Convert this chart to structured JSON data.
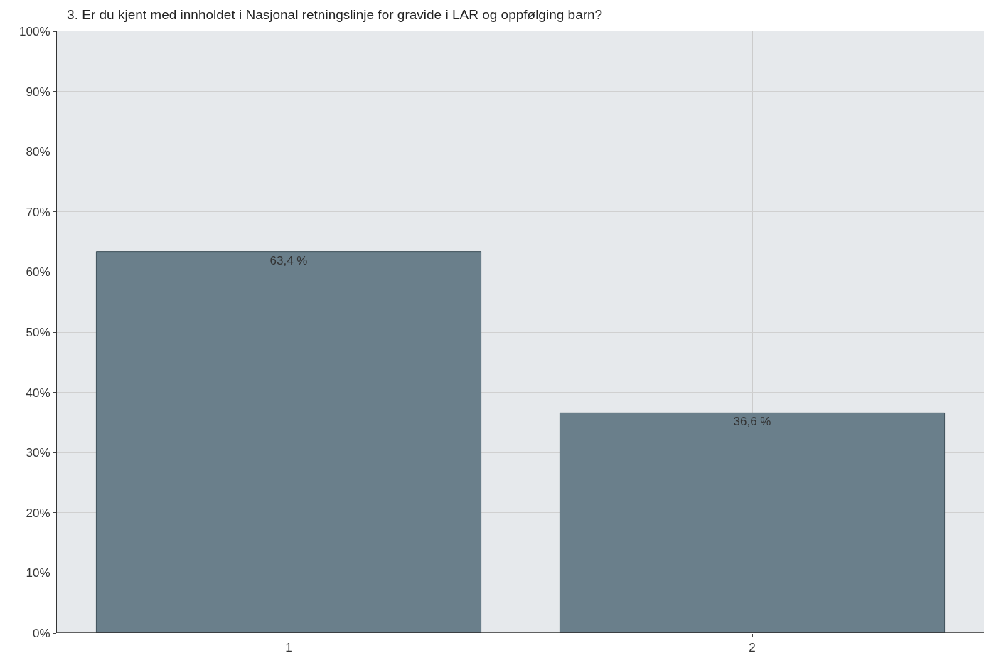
{
  "chart_data": {
    "type": "bar",
    "title": "3. Er du kjent med innholdet i Nasjonal retningslinje for gravide i LAR og oppfølging barn?",
    "categories": [
      "1",
      "2"
    ],
    "values": [
      63.4,
      36.6
    ],
    "value_labels": [
      "63,4 %",
      "36,6 %"
    ],
    "color": "#6a7f8b",
    "ylim": [
      0,
      100
    ],
    "yticks": [
      {
        "value": 0,
        "label": "0%"
      },
      {
        "value": 10,
        "label": "10%"
      },
      {
        "value": 20,
        "label": "20%"
      },
      {
        "value": 30,
        "label": "30%"
      },
      {
        "value": 40,
        "label": "40%"
      },
      {
        "value": 50,
        "label": "50%"
      },
      {
        "value": 60,
        "label": "60%"
      },
      {
        "value": 70,
        "label": "70%"
      },
      {
        "value": 80,
        "label": "80%"
      },
      {
        "value": 90,
        "label": "90%"
      },
      {
        "value": 100,
        "label": "100%"
      }
    ],
    "grid": true
  }
}
